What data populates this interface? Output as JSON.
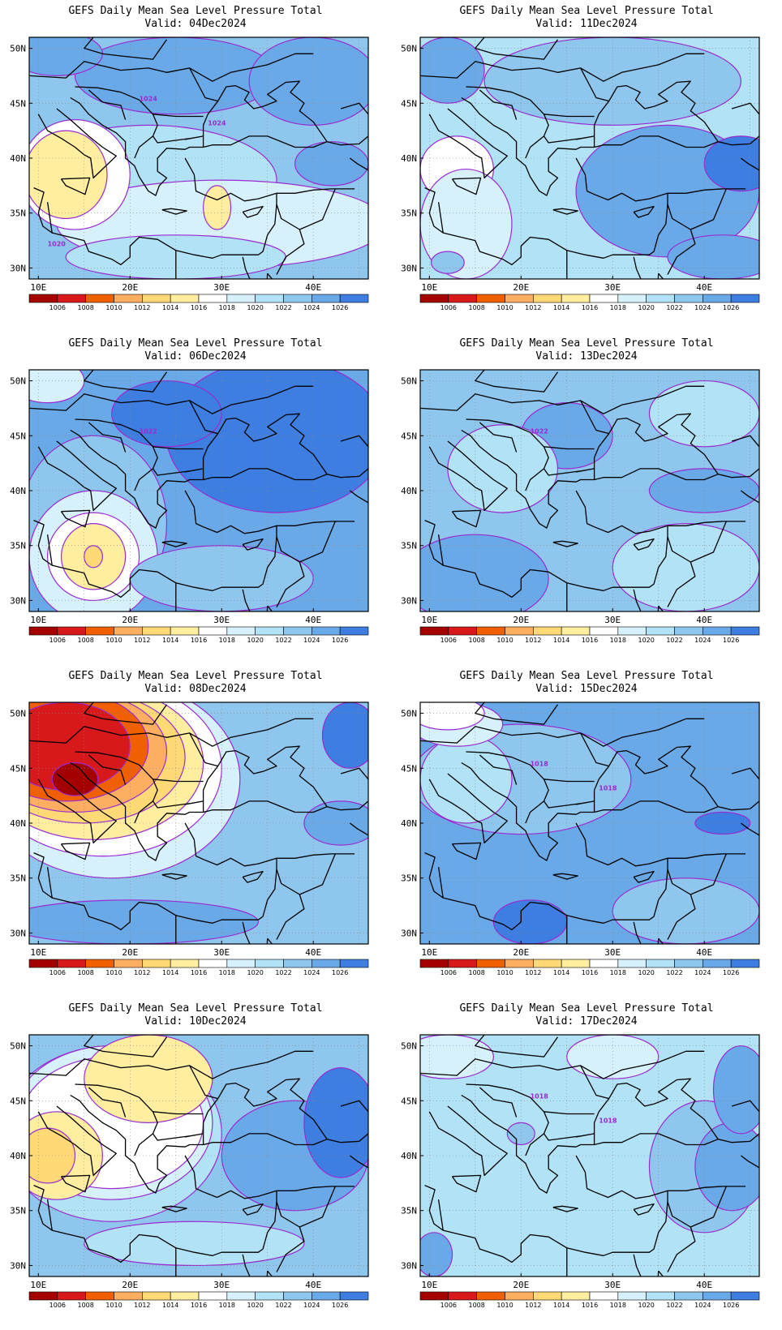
{
  "colorbar": {
    "labels": [
      "1006",
      "1008",
      "1010",
      "1012",
      "1014",
      "1016",
      "1018",
      "1020",
      "1022",
      "1024",
      "1026"
    ],
    "colors": [
      "#a50000",
      "#d7191c",
      "#f06000",
      "#fdae61",
      "#fed976",
      "#ffeda0",
      "#ffffff",
      "#d6f1fb",
      "#b2e2f5",
      "#8ec6ee",
      "#6aa9e8",
      "#3d7ee0"
    ]
  },
  "axes": {
    "x_ticks": [
      "10E",
      "20E",
      "30E",
      "40E"
    ],
    "y_ticks": [
      "50N",
      "45N",
      "40N",
      "35N",
      "30N"
    ],
    "lon_range": [
      9,
      46
    ],
    "lat_range": [
      29,
      51
    ]
  },
  "colors": {
    "contour": "#9a2bd1",
    "coast": "#000000",
    "grid": "#888888"
  },
  "panels": [
    {
      "title": "GEFS Daily Mean Sea Level Pressure Total",
      "valid": "Valid: 04Dec2024",
      "background": "#8ec6ee",
      "contour_labels": [
        "1024",
        "1024",
        "1020"
      ],
      "blobs": [
        {
          "cx": 25,
          "cy": 47.5,
          "rx": 11,
          "ry": 3.5,
          "c": "#6aa9e8"
        },
        {
          "cx": 40,
          "cy": 47,
          "rx": 7,
          "ry": 4,
          "c": "#6aa9e8"
        },
        {
          "cx": 12,
          "cy": 49.5,
          "rx": 5,
          "ry": 2,
          "c": "#6aa9e8"
        },
        {
          "cx": 22,
          "cy": 38,
          "rx": 14,
          "ry": 5,
          "c": "#b2e2f5"
        },
        {
          "cx": 30,
          "cy": 34,
          "rx": 18,
          "ry": 4,
          "c": "#d6f1fb"
        },
        {
          "cx": 14,
          "cy": 38.5,
          "rx": 6,
          "ry": 5,
          "c": "#ffffff"
        },
        {
          "cx": 13,
          "cy": 38.5,
          "rx": 4.5,
          "ry": 4,
          "c": "#ffeda0"
        },
        {
          "cx": 29.5,
          "cy": 35.5,
          "rx": 1.5,
          "ry": 2,
          "c": "#ffeda0"
        },
        {
          "cx": 42,
          "cy": 39.5,
          "rx": 4,
          "ry": 2,
          "c": "#6aa9e8"
        },
        {
          "cx": 25,
          "cy": 31,
          "rx": 12,
          "ry": 2,
          "c": "#b2e2f5"
        }
      ]
    },
    {
      "title": "GEFS Daily Mean Sea Level Pressure Total",
      "valid": "Valid: 11Dec2024",
      "background": "#b2e2f5",
      "contour_labels": [],
      "blobs": [
        {
          "cx": 30,
          "cy": 47,
          "rx": 14,
          "ry": 4,
          "c": "#8ec6ee"
        },
        {
          "cx": 12,
          "cy": 48,
          "rx": 4,
          "ry": 3,
          "c": "#6aa9e8"
        },
        {
          "cx": 36,
          "cy": 37,
          "rx": 10,
          "ry": 6,
          "c": "#6aa9e8"
        },
        {
          "cx": 44,
          "cy": 39.5,
          "rx": 4,
          "ry": 2.5,
          "c": "#3d7ee0"
        },
        {
          "cx": 13,
          "cy": 39,
          "rx": 4,
          "ry": 3,
          "c": "#ffffff"
        },
        {
          "cx": 14,
          "cy": 34,
          "rx": 5,
          "ry": 5,
          "c": "#d6f1fb"
        },
        {
          "cx": 12,
          "cy": 30.5,
          "rx": 1.8,
          "ry": 1,
          "c": "#8ec6ee"
        },
        {
          "cx": 42,
          "cy": 31,
          "rx": 6,
          "ry": 2,
          "c": "#6aa9e8"
        }
      ]
    },
    {
      "title": "GEFS Daily Mean Sea Level Pressure Total",
      "valid": "Valid: 06Dec2024",
      "background": "#6aa9e8",
      "contour_labels": [
        "1022"
      ],
      "blobs": [
        {
          "cx": 36,
          "cy": 45,
          "rx": 12,
          "ry": 7,
          "c": "#3d7ee0"
        },
        {
          "cx": 24,
          "cy": 47,
          "rx": 6,
          "ry": 3,
          "c": "#3d7ee0"
        },
        {
          "cx": 16,
          "cy": 37,
          "rx": 8,
          "ry": 8,
          "c": "#8ec6ee"
        },
        {
          "cx": 16,
          "cy": 34,
          "rx": 7,
          "ry": 6,
          "c": "#d6f1fb"
        },
        {
          "cx": 16,
          "cy": 34,
          "rx": 5,
          "ry": 4,
          "c": "#ffffff"
        },
        {
          "cx": 16,
          "cy": 34,
          "rx": 3.5,
          "ry": 3,
          "c": "#ffeda0"
        },
        {
          "cx": 16,
          "cy": 34,
          "rx": 1,
          "ry": 1,
          "c": "#fed976"
        },
        {
          "cx": 11,
          "cy": 50,
          "rx": 4,
          "ry": 2,
          "c": "#d6f1fb"
        },
        {
          "cx": 30,
          "cy": 32,
          "rx": 10,
          "ry": 3,
          "c": "#8ec6ee"
        }
      ]
    },
    {
      "title": "GEFS Daily Mean Sea Level Pressure Total",
      "valid": "Valid: 13Dec2024",
      "background": "#8ec6ee",
      "contour_labels": [
        "1022"
      ],
      "blobs": [
        {
          "cx": 15,
          "cy": 32,
          "rx": 8,
          "ry": 4,
          "c": "#6aa9e8"
        },
        {
          "cx": 25,
          "cy": 45,
          "rx": 5,
          "ry": 3,
          "c": "#6aa9e8"
        },
        {
          "cx": 40,
          "cy": 40,
          "rx": 6,
          "ry": 2,
          "c": "#6aa9e8"
        },
        {
          "cx": 40,
          "cy": 47,
          "rx": 6,
          "ry": 3,
          "c": "#b2e2f5"
        },
        {
          "cx": 38,
          "cy": 33,
          "rx": 8,
          "ry": 4,
          "c": "#b2e2f5"
        },
        {
          "cx": 18,
          "cy": 42,
          "rx": 6,
          "ry": 4,
          "c": "#b2e2f5"
        }
      ]
    },
    {
      "title": "GEFS Daily Mean Sea Level Pressure Total",
      "valid": "Valid: 08Dec2024",
      "background": "#8ec6ee",
      "contour_labels": [],
      "blobs": [
        {
          "cx": 18,
          "cy": 44,
          "rx": 14,
          "ry": 9,
          "c": "#d6f1fb"
        },
        {
          "cx": 17,
          "cy": 45,
          "rx": 13,
          "ry": 8,
          "c": "#ffffff"
        },
        {
          "cx": 16,
          "cy": 45.5,
          "rx": 12,
          "ry": 7,
          "c": "#ffeda0"
        },
        {
          "cx": 15,
          "cy": 46,
          "rx": 11,
          "ry": 6,
          "c": "#fed976"
        },
        {
          "cx": 14,
          "cy": 46.5,
          "rx": 10,
          "ry": 5.5,
          "c": "#fdae61"
        },
        {
          "cx": 13,
          "cy": 47,
          "rx": 9,
          "ry": 5,
          "c": "#f06000"
        },
        {
          "cx": 13,
          "cy": 47,
          "rx": 7,
          "ry": 4,
          "c": "#d7191c"
        },
        {
          "cx": 14,
          "cy": 44,
          "rx": 2.5,
          "ry": 1.5,
          "c": "#a50000"
        },
        {
          "cx": 43,
          "cy": 40,
          "rx": 4,
          "ry": 2,
          "c": "#6aa9e8"
        },
        {
          "cx": 44,
          "cy": 48,
          "rx": 3,
          "ry": 3,
          "c": "#3d7ee0"
        },
        {
          "cx": 20,
          "cy": 31,
          "rx": 14,
          "ry": 2,
          "c": "#6aa9e8"
        }
      ]
    },
    {
      "title": "GEFS Daily Mean Sea Level Pressure Total",
      "valid": "Valid: 15Dec2024",
      "background": "#6aa9e8",
      "contour_labels": [
        "1018",
        "1018"
      ],
      "blobs": [
        {
          "cx": 20,
          "cy": 44,
          "rx": 12,
          "ry": 5,
          "c": "#8ec6ee"
        },
        {
          "cx": 14,
          "cy": 44,
          "rx": 5,
          "ry": 4,
          "c": "#b2e2f5"
        },
        {
          "cx": 13,
          "cy": 49,
          "rx": 5,
          "ry": 2,
          "c": "#d6f1fb"
        },
        {
          "cx": 12,
          "cy": 50,
          "rx": 4,
          "ry": 1.5,
          "c": "#ffffff"
        },
        {
          "cx": 42,
          "cy": 40,
          "rx": 3,
          "ry": 1,
          "c": "#3d7ee0"
        },
        {
          "cx": 21,
          "cy": 31,
          "rx": 4,
          "ry": 2,
          "c": "#3d7ee0"
        },
        {
          "cx": 38,
          "cy": 32,
          "rx": 8,
          "ry": 3,
          "c": "#8ec6ee"
        }
      ]
    },
    {
      "title": "GEFS Daily Mean Sea Level Pressure Total",
      "valid": "Valid: 10Dec2024",
      "background": "#8ec6ee",
      "contour_labels": [],
      "blobs": [
        {
          "cx": 18,
          "cy": 42,
          "rx": 12,
          "ry": 8,
          "c": "#b2e2f5"
        },
        {
          "cx": 18,
          "cy": 43,
          "rx": 11,
          "ry": 7,
          "c": "#d6f1fb"
        },
        {
          "cx": 18,
          "cy": 43,
          "rx": 10,
          "ry": 6,
          "c": "#ffffff"
        },
        {
          "cx": 22,
          "cy": 47,
          "rx": 7,
          "ry": 4,
          "c": "#ffeda0"
        },
        {
          "cx": 12,
          "cy": 40,
          "rx": 5,
          "ry": 4,
          "c": "#ffeda0"
        },
        {
          "cx": 11,
          "cy": 40,
          "rx": 3,
          "ry": 2.5,
          "c": "#fed976"
        },
        {
          "cx": 38,
          "cy": 40,
          "rx": 8,
          "ry": 5,
          "c": "#6aa9e8"
        },
        {
          "cx": 43,
          "cy": 43,
          "rx": 4,
          "ry": 5,
          "c": "#3d7ee0"
        },
        {
          "cx": 27,
          "cy": 32,
          "rx": 12,
          "ry": 2,
          "c": "#b2e2f5"
        }
      ]
    },
    {
      "title": "GEFS Daily Mean Sea Level Pressure Total",
      "valid": "Valid: 17Dec2024",
      "background": "#b2e2f5",
      "contour_labels": [
        "1018",
        "1018"
      ],
      "blobs": [
        {
          "cx": 40,
          "cy": 39,
          "rx": 6,
          "ry": 6,
          "c": "#8ec6ee"
        },
        {
          "cx": 43,
          "cy": 39,
          "rx": 4,
          "ry": 4,
          "c": "#6aa9e8"
        },
        {
          "cx": 44,
          "cy": 46,
          "rx": 3,
          "ry": 4,
          "c": "#6aa9e8"
        },
        {
          "cx": 10.5,
          "cy": 31,
          "rx": 2,
          "ry": 2,
          "c": "#6aa9e8"
        },
        {
          "cx": 12,
          "cy": 49,
          "rx": 5,
          "ry": 2,
          "c": "#d6f1fb"
        },
        {
          "cx": 30,
          "cy": 49,
          "rx": 5,
          "ry": 2,
          "c": "#d6f1fb"
        },
        {
          "cx": 20,
          "cy": 42,
          "rx": 1.5,
          "ry": 1,
          "c": "#8ec6ee"
        }
      ]
    }
  ]
}
